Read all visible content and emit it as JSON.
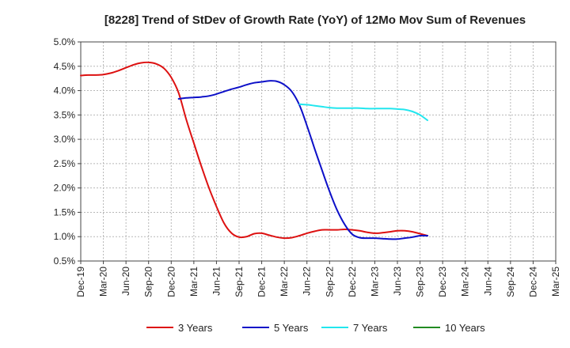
{
  "chart_data": {
    "type": "line",
    "title": "[8228]  Trend of StDev of Growth Rate (YoY) of 12Mo Mov Sum of Revenues",
    "xlabel": "",
    "ylabel": "",
    "ylim": [
      0.5,
      5.0
    ],
    "grid": true,
    "legend_position": "bottom",
    "categories": [
      "Dec-19",
      "Mar-20",
      "Jun-20",
      "Sep-20",
      "Dec-20",
      "Mar-21",
      "Jun-21",
      "Sep-21",
      "Dec-21",
      "Mar-22",
      "Jun-22",
      "Sep-22",
      "Dec-22",
      "Mar-23",
      "Jun-23",
      "Sep-23",
      "Dec-23",
      "Mar-24",
      "Jun-24",
      "Sep-24",
      "Dec-24",
      "Mar-25"
    ],
    "y_ticks": [
      "0.5%",
      "1.0%",
      "1.5%",
      "2.0%",
      "2.5%",
      "3.0%",
      "3.5%",
      "4.0%",
      "4.5%",
      "5.0%"
    ],
    "y_tick_values": [
      0.5,
      1.0,
      1.5,
      2.0,
      2.5,
      3.0,
      3.5,
      4.0,
      4.5,
      5.0
    ],
    "series": [
      {
        "name": "3 Years",
        "color": "#dd1111",
        "points": [
          [
            0,
            4.31
          ],
          [
            0.33,
            4.32
          ],
          [
            0.67,
            4.32
          ],
          [
            1,
            4.33
          ],
          [
            1.33,
            4.36
          ],
          [
            1.67,
            4.41
          ],
          [
            2,
            4.47
          ],
          [
            2.33,
            4.53
          ],
          [
            2.67,
            4.57
          ],
          [
            3,
            4.58
          ],
          [
            3.33,
            4.55
          ],
          [
            3.67,
            4.46
          ],
          [
            4,
            4.27
          ],
          [
            4.33,
            3.95
          ],
          [
            4.67,
            3.4
          ],
          [
            5,
            2.92
          ],
          [
            5.33,
            2.45
          ],
          [
            5.67,
            2.0
          ],
          [
            6,
            1.62
          ],
          [
            6.33,
            1.28
          ],
          [
            6.67,
            1.07
          ],
          [
            7,
            0.99
          ],
          [
            7.33,
            1.0
          ],
          [
            7.67,
            1.06
          ],
          [
            8,
            1.07
          ],
          [
            8.33,
            1.03
          ],
          [
            8.67,
            0.99
          ],
          [
            9,
            0.97
          ],
          [
            9.33,
            0.98
          ],
          [
            9.67,
            1.02
          ],
          [
            10,
            1.07
          ],
          [
            10.33,
            1.11
          ],
          [
            10.67,
            1.14
          ],
          [
            11,
            1.14
          ],
          [
            11.33,
            1.14
          ],
          [
            11.67,
            1.15
          ],
          [
            12,
            1.14
          ],
          [
            12.33,
            1.12
          ],
          [
            12.67,
            1.09
          ],
          [
            13,
            1.07
          ],
          [
            13.33,
            1.08
          ],
          [
            13.67,
            1.1
          ],
          [
            14,
            1.12
          ],
          [
            14.33,
            1.12
          ],
          [
            14.67,
            1.1
          ],
          [
            15,
            1.06
          ],
          [
            15.33,
            1.02
          ]
        ]
      },
      {
        "name": "5 Years",
        "color": "#0d10c8",
        "points": [
          [
            4.33,
            3.83
          ],
          [
            4.67,
            3.85
          ],
          [
            5,
            3.86
          ],
          [
            5.33,
            3.87
          ],
          [
            5.67,
            3.89
          ],
          [
            6,
            3.93
          ],
          [
            6.33,
            3.98
          ],
          [
            6.67,
            4.03
          ],
          [
            7,
            4.07
          ],
          [
            7.33,
            4.12
          ],
          [
            7.67,
            4.16
          ],
          [
            8,
            4.18
          ],
          [
            8.33,
            4.2
          ],
          [
            8.67,
            4.19
          ],
          [
            9,
            4.12
          ],
          [
            9.33,
            3.98
          ],
          [
            9.67,
            3.7
          ],
          [
            10,
            3.28
          ],
          [
            10.33,
            2.82
          ],
          [
            10.67,
            2.36
          ],
          [
            11,
            1.93
          ],
          [
            11.33,
            1.55
          ],
          [
            11.67,
            1.25
          ],
          [
            12,
            1.05
          ],
          [
            12.33,
            0.98
          ],
          [
            12.67,
            0.97
          ],
          [
            13,
            0.97
          ],
          [
            13.33,
            0.96
          ],
          [
            13.67,
            0.95
          ],
          [
            14,
            0.95
          ],
          [
            14.33,
            0.97
          ],
          [
            14.67,
            0.99
          ],
          [
            15,
            1.02
          ],
          [
            15.33,
            1.02
          ]
        ]
      },
      {
        "name": "7 Years",
        "color": "#22e6ee",
        "points": [
          [
            9.67,
            3.72
          ],
          [
            10,
            3.71
          ],
          [
            10.33,
            3.69
          ],
          [
            10.67,
            3.67
          ],
          [
            11,
            3.65
          ],
          [
            11.33,
            3.64
          ],
          [
            11.67,
            3.64
          ],
          [
            12,
            3.64
          ],
          [
            12.33,
            3.64
          ],
          [
            12.67,
            3.63
          ],
          [
            13,
            3.63
          ],
          [
            13.33,
            3.63
          ],
          [
            13.67,
            3.63
          ],
          [
            14,
            3.62
          ],
          [
            14.33,
            3.61
          ],
          [
            14.67,
            3.57
          ],
          [
            15,
            3.5
          ],
          [
            15.33,
            3.39
          ]
        ]
      },
      {
        "name": "10 Years",
        "color": "#228b22",
        "points": []
      }
    ]
  }
}
